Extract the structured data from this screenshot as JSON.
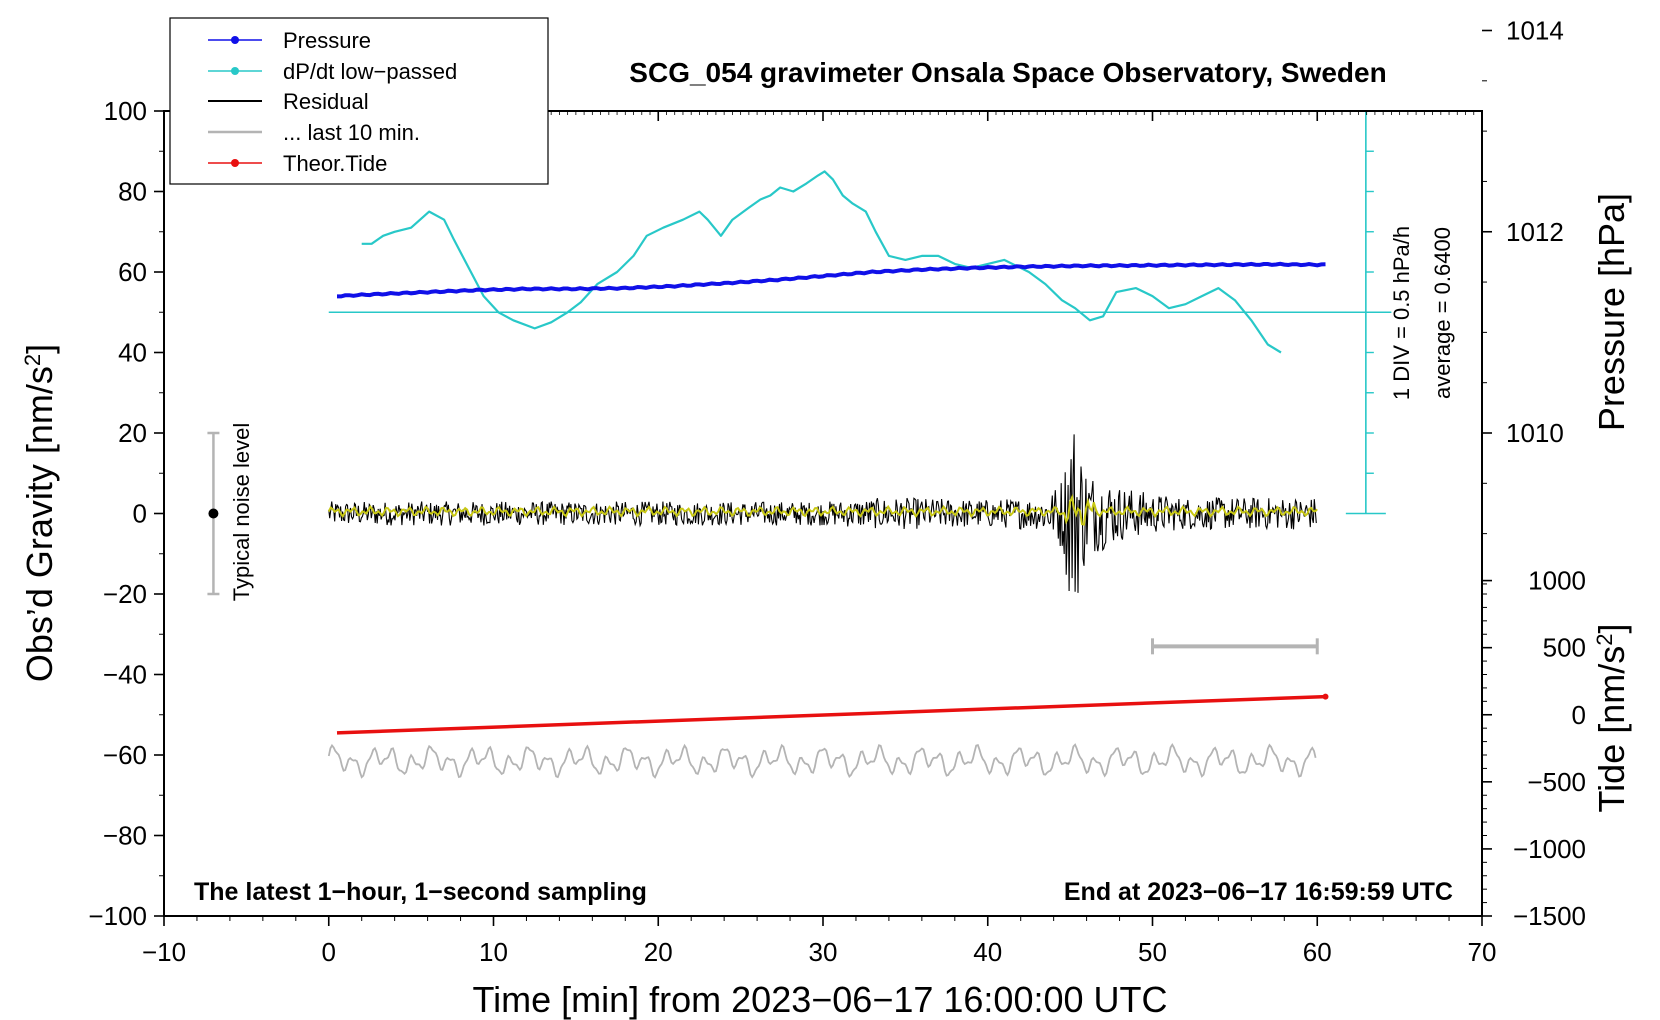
{
  "chart_data": {
    "type": "line",
    "title": "SCG_054 gravimeter Onsala Space Observatory, Sweden",
    "xlabel": "Time [min] from 2023−06−17 16:00:00 UTC",
    "ylabel_left_main": "Obs’d Gravity [nm/s",
    "ylabel_left_sup": "2",
    "ylabel_left_end": "]",
    "ylabel_right_pressure": "Pressure [hPa]",
    "ylabel_right_tide_main": "Tide [nm/s",
    "ylabel_right_tide_sup": "2",
    "ylabel_right_tide_end": "]",
    "xlim": [
      -10,
      70
    ],
    "ylim": [
      -100,
      100
    ],
    "x_ticks": [
      -10,
      0,
      10,
      20,
      30,
      40,
      50,
      60,
      70
    ],
    "x_tick_labels": [
      "−10",
      "0",
      "10",
      "20",
      "30",
      "40",
      "50",
      "60",
      "70"
    ],
    "y_ticks": [
      -100,
      -80,
      -60,
      -40,
      -20,
      0,
      20,
      40,
      60,
      80,
      100
    ],
    "y_tick_labels": [
      "−100",
      "−80",
      "−60",
      "−40",
      "−20",
      "0",
      "20",
      "40",
      "60",
      "80",
      "100"
    ],
    "pressure_axis": {
      "ticks": [
        1010,
        1012,
        1014
      ],
      "tick_labels": [
        "1010",
        "1012",
        "1014"
      ],
      "ref": {
        "value": 1010,
        "y": 20
      },
      "units_per_gravity": 0.04
    },
    "tide_axis": {
      "ticks": [
        -1500,
        -1000,
        -500,
        0,
        500,
        1000
      ],
      "tick_labels": [
        "−1500",
        "−1000",
        "−500",
        "0",
        "500",
        "1000"
      ],
      "ref": {
        "value": 0,
        "y": -50
      },
      "units_per_gravity": 30
    },
    "legend": {
      "placement": "top-left",
      "entries": [
        {
          "label": "Pressure",
          "color": "#1010e8",
          "marker": true
        },
        {
          "label": "dP/dt low−passed",
          "color": "#28c8c8",
          "marker": true
        },
        {
          "label": "Residual",
          "color": "#000000",
          "marker": false
        },
        {
          "label": "... last 10 min.",
          "color": "#b4b4b4",
          "marker": false
        },
        {
          "label": "Theor.Tide",
          "color": "#e81010",
          "marker": true
        }
      ]
    },
    "series": [
      {
        "name": "Pressure",
        "color": "#1010e8",
        "axis": "left",
        "x": [
          0.5,
          3,
          6,
          9,
          12,
          15,
          18,
          21,
          24,
          27,
          30,
          33,
          36,
          39,
          42,
          45,
          48,
          51,
          54,
          57,
          60.5
        ],
        "y": [
          54,
          54.5,
          55,
          55.5,
          55.8,
          55.8,
          56,
          56.5,
          57.2,
          58,
          59,
          60,
          60.6,
          61,
          61.3,
          61.5,
          61.6,
          61.7,
          61.8,
          61.9,
          61.8
        ]
      },
      {
        "name": "dP/dt low−passed",
        "color": "#28c8c8",
        "axis": "left",
        "x": [
          2,
          2.6,
          3.3,
          4,
          5,
          6.1,
          7,
          7.6,
          8.5,
          9.4,
          10.3,
          11.2,
          12.5,
          13.5,
          14.5,
          15.3,
          16.3,
          17.5,
          18.5,
          19.3,
          20.3,
          21.5,
          22.5,
          23,
          23.8,
          24.5,
          25.5,
          26.2,
          26.8,
          27.4,
          28.2,
          29,
          29.7,
          30.1,
          30.6,
          31.2,
          31.8,
          32.6,
          33.2,
          34,
          35,
          36,
          37,
          38,
          39,
          40,
          41,
          42.5,
          43.5,
          44.5,
          45.3,
          46.2,
          47,
          47.8,
          49,
          50,
          51,
          52,
          53,
          54,
          55,
          56,
          57,
          57.8
        ],
        "y": [
          67,
          67,
          69,
          70,
          71,
          75,
          73,
          68,
          61,
          54,
          50,
          48,
          46,
          47.5,
          50,
          52.5,
          57,
          60,
          64,
          69,
          71,
          73,
          75,
          73,
          69,
          73,
          76,
          78,
          79,
          81,
          80,
          82,
          84,
          85,
          83,
          79,
          77,
          75,
          70,
          64,
          63,
          64,
          64,
          62,
          61,
          62,
          63,
          60,
          57,
          53,
          51,
          48,
          49,
          55,
          56,
          54,
          51,
          52,
          54,
          56,
          53,
          48,
          42,
          40
        ]
      },
      {
        "name": "Residual",
        "color": "#000000",
        "axis": "left",
        "x": [
          0,
          10,
          20,
          30,
          34,
          40,
          43,
          44,
          44.6,
          45,
          45.3,
          45.6,
          46,
          46.5,
          47,
          48,
          49,
          50,
          52,
          55,
          60
        ],
        "y_amplitude": [
          3,
          3,
          3,
          3,
          4,
          3.5,
          4,
          6,
          10,
          24,
          25,
          18,
          12,
          10,
          9,
          7,
          6,
          5,
          4,
          4,
          4
        ],
        "y_center": 0
      },
      {
        "name": "Residual (smoothed)",
        "color": "#c8c814",
        "axis": "left",
        "x": [
          0,
          60
        ],
        "y_amplitude": [
          1.2,
          1.2
        ],
        "y_center": 0.5
      },
      {
        "name": "... last 10 min.",
        "color": "#b4b4b4",
        "axis": "left",
        "x": [
          0,
          60
        ],
        "y_amplitude": [
          3,
          3
        ],
        "y_center": -61.5
      },
      {
        "name": "Theor.Tide",
        "color": "#e81010",
        "axis": "left",
        "x": [
          0.5,
          60.5
        ],
        "y": [
          -54.5,
          -45.5
        ]
      }
    ],
    "annotations": {
      "pressure_reference_y": 50,
      "scale_bar": {
        "label_div": "1 DIV = 0.5 hPa/h",
        "label_avg": "average = 0.6400"
      },
      "noise_level": {
        "label": "Typical noise level",
        "x": -7,
        "y": 0,
        "y_range": [
          -20,
          20
        ]
      },
      "last10_bar": {
        "x_range": [
          50,
          60
        ],
        "y": -33
      },
      "bottom_left": "The latest 1−hour, 1−second sampling",
      "bottom_right": "End at 2023−06−17 16:59:59 UTC"
    }
  }
}
